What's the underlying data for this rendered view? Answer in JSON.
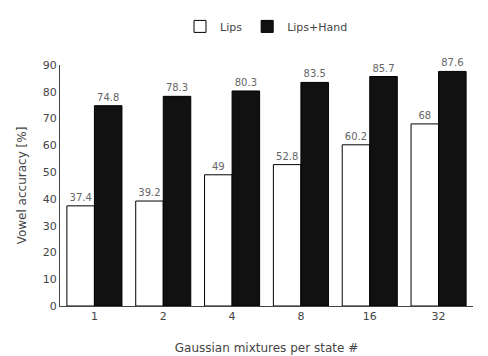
{
  "chart_data": {
    "type": "bar",
    "categories": [
      "1",
      "2",
      "4",
      "8",
      "16",
      "32"
    ],
    "series": [
      {
        "name": "Lips",
        "color": "#ffffff",
        "values": [
          37.4,
          39.2,
          49.0,
          52.8,
          60.2,
          68.0
        ]
      },
      {
        "name": "Lips+Hand",
        "color": "#111111",
        "values": [
          74.8,
          78.3,
          80.3,
          83.5,
          85.7,
          87.6
        ]
      }
    ],
    "xlabel": "Gaussian mixtures per state #",
    "ylabel": "Vowel accuracy [%]",
    "ylim": [
      0,
      90
    ],
    "yticks": [
      0,
      10,
      20,
      30,
      40,
      50,
      60,
      70,
      80,
      90
    ],
    "grid": false,
    "legend": "upper center",
    "data_labels": true
  }
}
